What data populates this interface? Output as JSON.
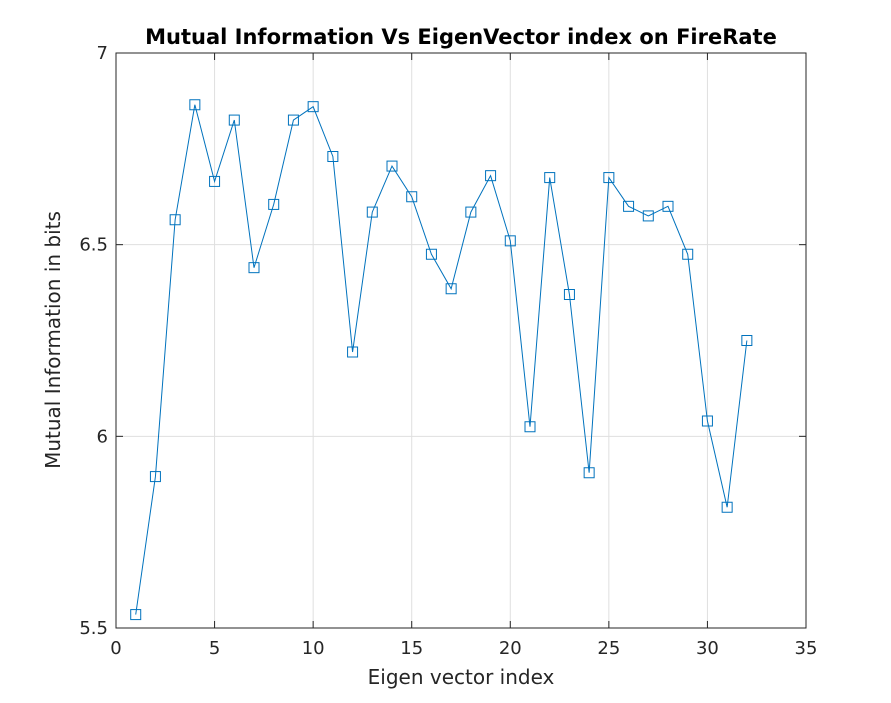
{
  "chart_data": {
    "type": "line",
    "title": "Mutual Information Vs EigenVector index on FireRate",
    "xlabel": "Eigen vector index",
    "ylabel": "Mutual Information in bits",
    "xlim": [
      0,
      35
    ],
    "ylim": [
      5.5,
      7
    ],
    "xticks": [
      0,
      5,
      10,
      15,
      20,
      25,
      30,
      35
    ],
    "yticks": [
      5.5,
      6,
      6.5,
      7
    ],
    "xtick_labels": [
      "0",
      "5",
      "10",
      "15",
      "20",
      "25",
      "30",
      "35"
    ],
    "ytick_labels": [
      "5.5",
      "6",
      "6.5",
      "7"
    ],
    "grid": true,
    "marker": "square",
    "line_color": "#0072bd",
    "x": [
      1,
      2,
      3,
      4,
      5,
      6,
      7,
      8,
      9,
      10,
      11,
      12,
      13,
      14,
      15,
      16,
      17,
      18,
      19,
      20,
      21,
      22,
      23,
      24,
      25,
      26,
      27,
      28,
      29,
      30,
      31,
      32
    ],
    "y": [
      5.535,
      5.895,
      6.565,
      6.865,
      6.665,
      6.825,
      6.44,
      6.605,
      6.825,
      6.86,
      6.73,
      6.22,
      6.585,
      6.705,
      6.625,
      6.475,
      6.385,
      6.585,
      6.68,
      6.51,
      6.025,
      6.675,
      6.37,
      5.905,
      6.675,
      6.6,
      6.575,
      6.6,
      6.475,
      6.04,
      5.815,
      6.25
    ]
  }
}
